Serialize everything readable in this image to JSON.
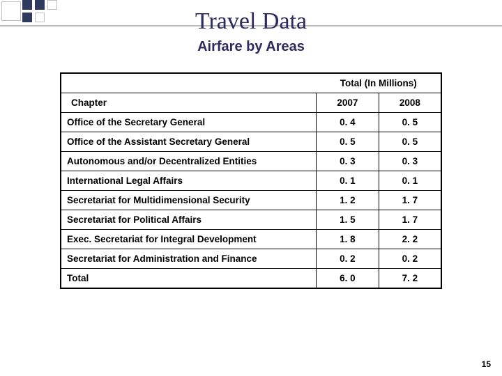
{
  "title": "Travel Data",
  "subtitle": "Airfare by Areas",
  "page_number": "15",
  "table": {
    "caption": "Total (In Millions)",
    "col_label": "Chapter",
    "years": [
      "2007",
      "2008"
    ],
    "rows": [
      {
        "label": "Office of the Secretary General",
        "v": [
          "0. 4",
          "0. 5"
        ]
      },
      {
        "label": "Office of the Assistant Secretary General",
        "v": [
          "0. 5",
          "0. 5"
        ]
      },
      {
        "label": "Autonomous and/or Decentralized Entities",
        "v": [
          "0. 3",
          "0. 3"
        ]
      },
      {
        "label": "International Legal Affairs",
        "v": [
          "0. 1",
          "0. 1"
        ]
      },
      {
        "label": "Secretariat for Multidimensional Security",
        "v": [
          "1. 2",
          "1. 7"
        ]
      },
      {
        "label": "Secretariat for Political Affairs",
        "v": [
          "1. 5",
          "1. 7"
        ]
      },
      {
        "label": "Exec. Secretariat for Integral Development",
        "v": [
          "1. 8",
          "2. 2"
        ]
      },
      {
        "label": "Secretariat for Administration and Finance",
        "v": [
          "0. 2",
          "0. 2"
        ]
      },
      {
        "label": "Total",
        "v": [
          "6. 0",
          "7. 2"
        ]
      }
    ]
  },
  "styling": {
    "title_color": "#2b2b60",
    "border_color": "#000000",
    "deco_navy": "#2e3a5c",
    "deco_outline": "#c0c0c0",
    "font_size_title": 34,
    "font_size_sub": 20,
    "font_size_cell": 13.5
  }
}
